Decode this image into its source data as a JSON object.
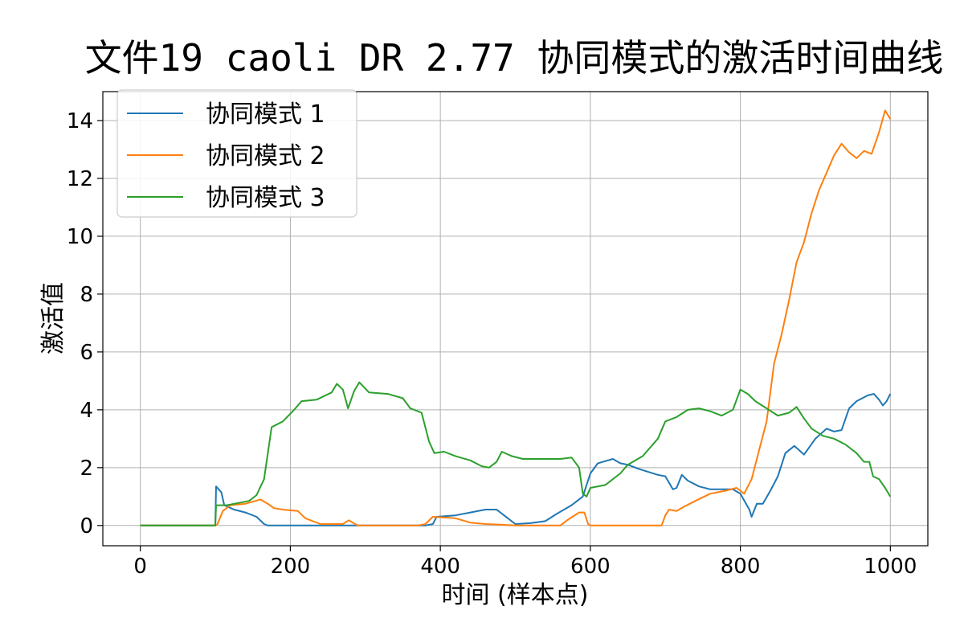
{
  "chart_data": {
    "type": "line",
    "title": "文件19 caoli DR 2.77 协同模式的激活时间曲线",
    "xlabel": "时间 (样本点)",
    "ylabel": "激活值",
    "xlim": [
      -50,
      1050
    ],
    "ylim": [
      -0.7,
      15.0
    ],
    "xticks": [
      0,
      200,
      400,
      600,
      800,
      1000
    ],
    "yticks": [
      0,
      2,
      4,
      6,
      8,
      10,
      12,
      14
    ],
    "grid": true,
    "legend_position": "top-left",
    "series": [
      {
        "name": "协同模式 1",
        "color": "#1f77b4",
        "points": [
          [
            0,
            0
          ],
          [
            100,
            0
          ],
          [
            101,
            1.35
          ],
          [
            108,
            1.15
          ],
          [
            112,
            0.7
          ],
          [
            125,
            0.55
          ],
          [
            140,
            0.45
          ],
          [
            155,
            0.3
          ],
          [
            165,
            0.05
          ],
          [
            170,
            0
          ],
          [
            380,
            0
          ],
          [
            390,
            0.05
          ],
          [
            395,
            0.3
          ],
          [
            420,
            0.35
          ],
          [
            440,
            0.45
          ],
          [
            460,
            0.55
          ],
          [
            475,
            0.55
          ],
          [
            485,
            0.35
          ],
          [
            500,
            0.05
          ],
          [
            520,
            0.08
          ],
          [
            540,
            0.15
          ],
          [
            555,
            0.4
          ],
          [
            575,
            0.7
          ],
          [
            590,
            1.0
          ],
          [
            600,
            1.8
          ],
          [
            610,
            2.15
          ],
          [
            630,
            2.3
          ],
          [
            640,
            2.15
          ],
          [
            650,
            2.1
          ],
          [
            665,
            1.95
          ],
          [
            690,
            1.75
          ],
          [
            700,
            1.7
          ],
          [
            710,
            1.25
          ],
          [
            715,
            1.3
          ],
          [
            722,
            1.75
          ],
          [
            730,
            1.55
          ],
          [
            745,
            1.35
          ],
          [
            760,
            1.25
          ],
          [
            790,
            1.25
          ],
          [
            800,
            1.1
          ],
          [
            812,
            0.55
          ],
          [
            815,
            0.3
          ],
          [
            822,
            0.75
          ],
          [
            830,
            0.75
          ],
          [
            840,
            1.2
          ],
          [
            850,
            1.7
          ],
          [
            860,
            2.5
          ],
          [
            872,
            2.75
          ],
          [
            885,
            2.45
          ],
          [
            900,
            3.0
          ],
          [
            915,
            3.35
          ],
          [
            925,
            3.25
          ],
          [
            935,
            3.3
          ],
          [
            945,
            4.05
          ],
          [
            955,
            4.3
          ],
          [
            970,
            4.5
          ],
          [
            978,
            4.55
          ],
          [
            985,
            4.35
          ],
          [
            990,
            4.15
          ],
          [
            995,
            4.3
          ],
          [
            1000,
            4.55
          ]
        ]
      },
      {
        "name": "协同模式 2",
        "color": "#ff7f0e",
        "points": [
          [
            0,
            0
          ],
          [
            100,
            0
          ],
          [
            103,
            0.05
          ],
          [
            110,
            0.5
          ],
          [
            120,
            0.7
          ],
          [
            140,
            0.75
          ],
          [
            160,
            0.9
          ],
          [
            170,
            0.75
          ],
          [
            178,
            0.6
          ],
          [
            190,
            0.55
          ],
          [
            210,
            0.5
          ],
          [
            220,
            0.25
          ],
          [
            240,
            0.05
          ],
          [
            270,
            0.05
          ],
          [
            278,
            0.18
          ],
          [
            283,
            0.1
          ],
          [
            290,
            0
          ],
          [
            370,
            0
          ],
          [
            380,
            0.05
          ],
          [
            390,
            0.3
          ],
          [
            420,
            0.25
          ],
          [
            440,
            0.1
          ],
          [
            460,
            0.05
          ],
          [
            480,
            0.03
          ],
          [
            500,
            0
          ],
          [
            560,
            0
          ],
          [
            570,
            0.2
          ],
          [
            585,
            0.45
          ],
          [
            592,
            0.45
          ],
          [
            597,
            0.05
          ],
          [
            600,
            0
          ],
          [
            695,
            0
          ],
          [
            700,
            0.35
          ],
          [
            705,
            0.55
          ],
          [
            715,
            0.5
          ],
          [
            725,
            0.65
          ],
          [
            740,
            0.85
          ],
          [
            760,
            1.1
          ],
          [
            780,
            1.2
          ],
          [
            795,
            1.3
          ],
          [
            805,
            1.1
          ],
          [
            815,
            1.6
          ],
          [
            825,
            2.6
          ],
          [
            835,
            3.6
          ],
          [
            845,
            5.6
          ],
          [
            855,
            6.6
          ],
          [
            865,
            7.8
          ],
          [
            875,
            9.1
          ],
          [
            885,
            9.8
          ],
          [
            895,
            10.8
          ],
          [
            905,
            11.6
          ],
          [
            915,
            12.2
          ],
          [
            925,
            12.8
          ],
          [
            935,
            13.2
          ],
          [
            945,
            12.9
          ],
          [
            955,
            12.7
          ],
          [
            965,
            12.95
          ],
          [
            975,
            12.85
          ],
          [
            985,
            13.6
          ],
          [
            993,
            14.35
          ],
          [
            1000,
            14.05
          ]
        ]
      },
      {
        "name": "协同模式 3",
        "color": "#2ca02c",
        "points": [
          [
            0,
            0
          ],
          [
            100,
            0
          ],
          [
            101,
            0.7
          ],
          [
            115,
            0.7
          ],
          [
            125,
            0.75
          ],
          [
            145,
            0.85
          ],
          [
            155,
            1.05
          ],
          [
            165,
            1.6
          ],
          [
            175,
            3.4
          ],
          [
            190,
            3.6
          ],
          [
            205,
            4.0
          ],
          [
            215,
            4.3
          ],
          [
            235,
            4.35
          ],
          [
            255,
            4.6
          ],
          [
            262,
            4.9
          ],
          [
            270,
            4.7
          ],
          [
            277,
            4.05
          ],
          [
            285,
            4.65
          ],
          [
            292,
            4.95
          ],
          [
            305,
            4.6
          ],
          [
            330,
            4.55
          ],
          [
            350,
            4.4
          ],
          [
            360,
            4.05
          ],
          [
            375,
            3.9
          ],
          [
            385,
            2.9
          ],
          [
            392,
            2.5
          ],
          [
            405,
            2.55
          ],
          [
            420,
            2.4
          ],
          [
            440,
            2.25
          ],
          [
            455,
            2.05
          ],
          [
            465,
            2.0
          ],
          [
            475,
            2.2
          ],
          [
            482,
            2.55
          ],
          [
            495,
            2.4
          ],
          [
            510,
            2.3
          ],
          [
            560,
            2.3
          ],
          [
            575,
            2.35
          ],
          [
            585,
            2.0
          ],
          [
            590,
            1.1
          ],
          [
            595,
            1.0
          ],
          [
            600,
            1.3
          ],
          [
            620,
            1.4
          ],
          [
            640,
            1.8
          ],
          [
            650,
            2.1
          ],
          [
            670,
            2.4
          ],
          [
            690,
            3.0
          ],
          [
            700,
            3.6
          ],
          [
            715,
            3.75
          ],
          [
            730,
            4.0
          ],
          [
            745,
            4.05
          ],
          [
            760,
            3.95
          ],
          [
            775,
            3.8
          ],
          [
            790,
            4.0
          ],
          [
            800,
            4.7
          ],
          [
            810,
            4.55
          ],
          [
            820,
            4.3
          ],
          [
            835,
            4.05
          ],
          [
            850,
            3.8
          ],
          [
            865,
            3.9
          ],
          [
            875,
            4.1
          ],
          [
            885,
            3.7
          ],
          [
            895,
            3.35
          ],
          [
            910,
            3.1
          ],
          [
            925,
            3.0
          ],
          [
            940,
            2.8
          ],
          [
            955,
            2.5
          ],
          [
            965,
            2.2
          ],
          [
            972,
            2.2
          ],
          [
            977,
            1.7
          ],
          [
            985,
            1.6
          ],
          [
            993,
            1.3
          ],
          [
            1000,
            1.0
          ]
        ]
      }
    ]
  }
}
